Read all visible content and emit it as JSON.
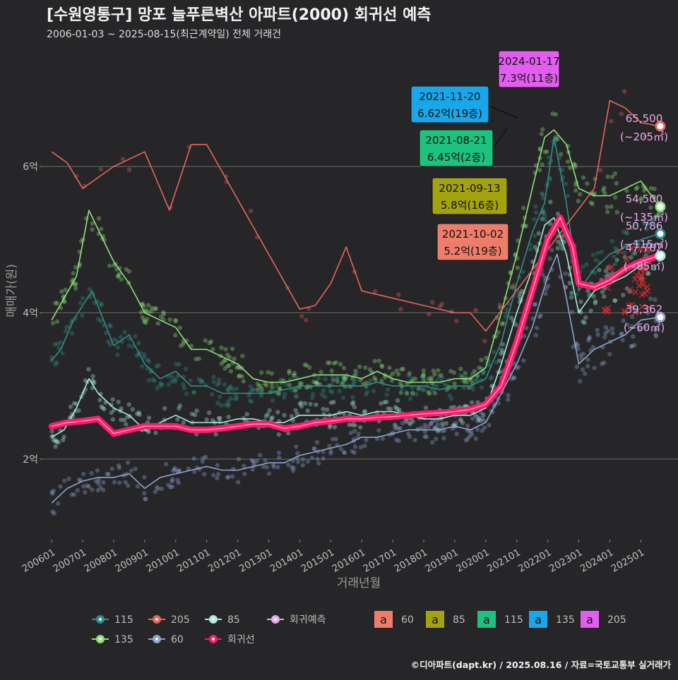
{
  "header": {
    "title": "[수원영통구] 망포 늘푸른벽산 아파트(2000) 회귀선 예측",
    "subtitle": "2006-01-03 ~ 2025-08-15(최근계약일) 전체 거래건"
  },
  "footer": {
    "credit": "©디아파트(dapt.kr) / 2025.08.16 / 자료=국토교통부 실거래가"
  },
  "chart_data": {
    "type": "scatter",
    "xlabel": "거래년월",
    "ylabel": "매매가(원)",
    "x_range": [
      "2006-01",
      "2025-08"
    ],
    "ylim": [
      0.9,
      7.6
    ],
    "y_ticks": [
      {
        "value": 2,
        "label": "2억"
      },
      {
        "value": 4,
        "label": "4억"
      },
      {
        "value": 6,
        "label": "6억"
      }
    ],
    "x_ticks": [
      "200601",
      "200701",
      "200801",
      "200901",
      "201001",
      "201101",
      "201201",
      "201301",
      "201401",
      "201501",
      "201601",
      "201701",
      "201801",
      "201901",
      "202001",
      "202101",
      "202201",
      "202301",
      "202401",
      "202501"
    ],
    "grid": true,
    "legend_position": "bottom",
    "colors": {
      "s60": "#8ea3cf",
      "s85": "#a8ecd8",
      "s115": "#2f8f86",
      "s135": "#8fe07a",
      "s205": "#e8645a",
      "regression": "#ff1a6a",
      "forecast": "#e6a9ec"
    },
    "series": [
      {
        "name": "60",
        "key": "s60",
        "points": [
          [
            2006.0,
            1.4
          ],
          [
            2006.5,
            1.6
          ],
          [
            2007.0,
            1.7
          ],
          [
            2007.5,
            1.75
          ],
          [
            2008.0,
            1.75
          ],
          [
            2008.5,
            1.8
          ],
          [
            2009.0,
            1.6
          ],
          [
            2009.5,
            1.75
          ],
          [
            2010.0,
            1.8
          ],
          [
            2010.5,
            1.85
          ],
          [
            2011.0,
            1.9
          ],
          [
            2011.5,
            1.85
          ],
          [
            2012.0,
            1.85
          ],
          [
            2012.5,
            1.9
          ],
          [
            2013.0,
            1.95
          ],
          [
            2013.5,
            1.95
          ],
          [
            2014.0,
            2.05
          ],
          [
            2014.5,
            2.1
          ],
          [
            2015.0,
            2.15
          ],
          [
            2015.5,
            2.2
          ],
          [
            2016.0,
            2.3
          ],
          [
            2016.5,
            2.3
          ],
          [
            2017.0,
            2.35
          ],
          [
            2017.5,
            2.4
          ],
          [
            2018.0,
            2.4
          ],
          [
            2018.5,
            2.4
          ],
          [
            2019.0,
            2.45
          ],
          [
            2019.5,
            2.4
          ],
          [
            2020.0,
            2.5
          ],
          [
            2020.5,
            2.9
          ],
          [
            2021.0,
            3.3
          ],
          [
            2021.5,
            3.8
          ],
          [
            2022.0,
            4.5
          ],
          [
            2022.3,
            4.8
          ],
          [
            2022.6,
            4.2
          ],
          [
            2023.0,
            3.3
          ],
          [
            2023.5,
            3.5
          ],
          [
            2024.0,
            3.6
          ],
          [
            2024.5,
            3.7
          ],
          [
            2025.0,
            3.9
          ],
          [
            2025.6,
            3.94
          ]
        ]
      },
      {
        "name": "85",
        "key": "s85",
        "points": [
          [
            2006.0,
            2.3
          ],
          [
            2006.4,
            2.4
          ],
          [
            2006.8,
            2.7
          ],
          [
            2007.2,
            3.1
          ],
          [
            2007.5,
            2.9
          ],
          [
            2008.0,
            2.7
          ],
          [
            2008.5,
            2.6
          ],
          [
            2009.0,
            2.4
          ],
          [
            2009.5,
            2.5
          ],
          [
            2010.0,
            2.6
          ],
          [
            2010.5,
            2.5
          ],
          [
            2011.0,
            2.5
          ],
          [
            2011.5,
            2.5
          ],
          [
            2012.0,
            2.55
          ],
          [
            2012.5,
            2.55
          ],
          [
            2013.0,
            2.5
          ],
          [
            2013.5,
            2.5
          ],
          [
            2014.0,
            2.6
          ],
          [
            2014.5,
            2.6
          ],
          [
            2015.0,
            2.6
          ],
          [
            2015.5,
            2.65
          ],
          [
            2016.0,
            2.6
          ],
          [
            2016.5,
            2.65
          ],
          [
            2017.0,
            2.65
          ],
          [
            2017.5,
            2.6
          ],
          [
            2018.0,
            2.55
          ],
          [
            2018.5,
            2.55
          ],
          [
            2019.0,
            2.6
          ],
          [
            2019.5,
            2.6
          ],
          [
            2020.0,
            2.7
          ],
          [
            2020.5,
            3.3
          ],
          [
            2021.0,
            4.0
          ],
          [
            2021.5,
            4.6
          ],
          [
            2021.9,
            5.2
          ],
          [
            2022.2,
            5.3
          ],
          [
            2022.6,
            4.8
          ],
          [
            2023.0,
            4.0
          ],
          [
            2023.5,
            4.3
          ],
          [
            2024.0,
            4.4
          ],
          [
            2024.5,
            4.5
          ],
          [
            2025.0,
            4.65
          ],
          [
            2025.6,
            4.78
          ]
        ]
      },
      {
        "name": "115",
        "key": "s115",
        "points": [
          [
            2006.0,
            3.35
          ],
          [
            2006.3,
            3.5
          ],
          [
            2006.7,
            3.9
          ],
          [
            2007.0,
            4.1
          ],
          [
            2007.3,
            4.3
          ],
          [
            2008.0,
            3.55
          ],
          [
            2008.5,
            3.7
          ],
          [
            2009.0,
            3.3
          ],
          [
            2009.5,
            3.1
          ],
          [
            2010.0,
            3.2
          ],
          [
            2010.5,
            3.0
          ],
          [
            2011.0,
            3.0
          ],
          [
            2011.5,
            2.9
          ],
          [
            2012.0,
            2.9
          ],
          [
            2012.5,
            2.9
          ],
          [
            2013.0,
            2.9
          ],
          [
            2013.5,
            2.95
          ],
          [
            2014.0,
            3.0
          ],
          [
            2014.5,
            3.0
          ],
          [
            2015.0,
            3.0
          ],
          [
            2015.5,
            3.0
          ],
          [
            2016.0,
            3.0
          ],
          [
            2016.5,
            3.05
          ],
          [
            2017.0,
            3.0
          ],
          [
            2017.5,
            3.0
          ],
          [
            2018.0,
            3.0
          ],
          [
            2018.5,
            2.95
          ],
          [
            2019.0,
            3.0
          ],
          [
            2019.5,
            3.0
          ],
          [
            2020.0,
            3.1
          ],
          [
            2020.5,
            3.6
          ],
          [
            2021.0,
            4.4
          ],
          [
            2021.5,
            5.1
          ],
          [
            2021.9,
            5.5
          ],
          [
            2022.2,
            6.4
          ],
          [
            2022.6,
            5.5
          ],
          [
            2023.0,
            4.3
          ],
          [
            2023.5,
            4.6
          ],
          [
            2024.0,
            4.8
          ],
          [
            2024.5,
            4.9
          ],
          [
            2025.0,
            5.0
          ],
          [
            2025.6,
            5.08
          ]
        ]
      },
      {
        "name": "135",
        "key": "s135",
        "points": [
          [
            2006.0,
            3.9
          ],
          [
            2006.4,
            4.2
          ],
          [
            2006.8,
            4.5
          ],
          [
            2007.2,
            5.4
          ],
          [
            2008.0,
            4.7
          ],
          [
            2008.5,
            4.4
          ],
          [
            2009.0,
            4.0
          ],
          [
            2009.5,
            3.9
          ],
          [
            2010.0,
            3.8
          ],
          [
            2010.5,
            3.5
          ],
          [
            2011.0,
            3.5
          ],
          [
            2011.5,
            3.4
          ],
          [
            2012.0,
            3.3
          ],
          [
            2012.5,
            3.1
          ],
          [
            2013.0,
            3.05
          ],
          [
            2013.5,
            3.05
          ],
          [
            2014.0,
            3.1
          ],
          [
            2014.5,
            3.15
          ],
          [
            2015.0,
            3.15
          ],
          [
            2015.5,
            3.15
          ],
          [
            2016.0,
            3.1
          ],
          [
            2016.5,
            3.2
          ],
          [
            2017.0,
            3.1
          ],
          [
            2017.5,
            3.05
          ],
          [
            2018.0,
            3.05
          ],
          [
            2018.5,
            3.05
          ],
          [
            2019.0,
            3.1
          ],
          [
            2019.5,
            3.1
          ],
          [
            2020.0,
            3.25
          ],
          [
            2020.5,
            4.0
          ],
          [
            2021.0,
            4.8
          ],
          [
            2021.5,
            5.7
          ],
          [
            2021.9,
            6.4
          ],
          [
            2022.2,
            6.5
          ],
          [
            2022.6,
            6.3
          ],
          [
            2023.0,
            5.7
          ],
          [
            2023.5,
            5.6
          ],
          [
            2024.0,
            5.6
          ],
          [
            2024.5,
            5.7
          ],
          [
            2025.0,
            5.8
          ],
          [
            2025.6,
            5.45
          ]
        ]
      },
      {
        "name": "205",
        "key": "s205",
        "points": [
          [
            2006.0,
            6.2
          ],
          [
            2006.5,
            6.05
          ],
          [
            2007.0,
            5.7
          ],
          [
            2008.0,
            6.0
          ],
          [
            2009.0,
            6.2
          ],
          [
            2009.8,
            5.4
          ],
          [
            2010.5,
            6.3
          ],
          [
            2011.0,
            6.3
          ],
          [
            2014.0,
            4.05
          ],
          [
            2014.5,
            4.1
          ],
          [
            2015.0,
            4.4
          ],
          [
            2015.5,
            4.9
          ],
          [
            2016.0,
            4.3
          ],
          [
            2017.0,
            4.2
          ],
          [
            2018.0,
            4.1
          ],
          [
            2019.0,
            4.0
          ],
          [
            2019.5,
            4.0
          ],
          [
            2020.0,
            3.75
          ],
          [
            2023.5,
            5.7
          ],
          [
            2024.0,
            6.9
          ],
          [
            2024.5,
            6.8
          ],
          [
            2025.0,
            6.6
          ],
          [
            2025.6,
            6.55
          ]
        ]
      },
      {
        "name": "회귀선",
        "key": "regression",
        "points": [
          [
            2006.0,
            2.45
          ],
          [
            2006.5,
            2.5
          ],
          [
            2007.0,
            2.52
          ],
          [
            2007.5,
            2.55
          ],
          [
            2008.0,
            2.35
          ],
          [
            2008.5,
            2.4
          ],
          [
            2009.0,
            2.45
          ],
          [
            2009.5,
            2.45
          ],
          [
            2010.0,
            2.45
          ],
          [
            2010.5,
            2.4
          ],
          [
            2011.0,
            2.4
          ],
          [
            2011.5,
            2.42
          ],
          [
            2012.0,
            2.45
          ],
          [
            2012.5,
            2.48
          ],
          [
            2013.0,
            2.48
          ],
          [
            2013.5,
            2.42
          ],
          [
            2014.0,
            2.45
          ],
          [
            2014.5,
            2.5
          ],
          [
            2015.0,
            2.52
          ],
          [
            2015.5,
            2.55
          ],
          [
            2016.0,
            2.55
          ],
          [
            2016.5,
            2.57
          ],
          [
            2017.0,
            2.58
          ],
          [
            2017.5,
            2.6
          ],
          [
            2018.0,
            2.62
          ],
          [
            2018.5,
            2.63
          ],
          [
            2019.0,
            2.65
          ],
          [
            2019.5,
            2.68
          ],
          [
            2020.0,
            2.75
          ],
          [
            2020.5,
            3.0
          ],
          [
            2021.0,
            3.6
          ],
          [
            2021.5,
            4.3
          ],
          [
            2022.0,
            5.0
          ],
          [
            2022.4,
            5.3
          ],
          [
            2022.8,
            4.9
          ],
          [
            2023.0,
            4.4
          ],
          [
            2023.5,
            4.35
          ],
          [
            2024.0,
            4.45
          ],
          [
            2024.5,
            4.6
          ],
          [
            2025.0,
            4.7
          ],
          [
            2025.6,
            4.78
          ]
        ]
      }
    ],
    "annotations": [
      {
        "date": "2024-01-17",
        "price": "7.3억(11층)",
        "area": "205",
        "color": "#e35ef0"
      },
      {
        "date": "2021-11-20",
        "price": "6.62억(19층)",
        "area": "135",
        "color": "#19a7ea"
      },
      {
        "date": "2021-08-21",
        "price": "6.45억(2층)",
        "area": "115",
        "color": "#1dc27e"
      },
      {
        "date": "2021-09-13",
        "price": "5.8억(16층)",
        "area": "85",
        "color": "#a3a20f"
      },
      {
        "date": "2021-10-02",
        "price": "5.2억(19층)",
        "area": "60",
        "color": "#ee7c6a"
      }
    ],
    "forecast_labels": [
      {
        "value": "65,500",
        "area": "(~205㎡)",
        "y": 6.55,
        "key": "s205"
      },
      {
        "value": "54,500",
        "area": "(~135㎡)",
        "y": 5.45,
        "key": "s135"
      },
      {
        "value": "50,786",
        "area": "(~115㎡)",
        "y": 5.08,
        "key": "s115"
      },
      {
        "value": "47,782",
        "area": "(~85㎡)",
        "y": 4.78,
        "key": "s85"
      },
      {
        "value": "39,362",
        "area": "(~60㎡)",
        "y": 3.94,
        "key": "s60"
      }
    ],
    "legend": {
      "lines": [
        {
          "label": "115",
          "key": "s115"
        },
        {
          "label": "205",
          "key": "s205"
        },
        {
          "label": "85",
          "key": "s85"
        },
        {
          "label": "회귀예측",
          "key": "forecast"
        },
        {
          "label": "135",
          "key": "s135"
        },
        {
          "label": "60",
          "key": "s60"
        },
        {
          "label": "회귀선",
          "key": "regression"
        }
      ],
      "boxes": [
        {
          "glyph": "a",
          "label": "60",
          "color": "#ee7c6a"
        },
        {
          "glyph": "a",
          "label": "85",
          "color": "#a3a20f"
        },
        {
          "glyph": "a",
          "label": "115",
          "color": "#1dc27e"
        },
        {
          "glyph": "a",
          "label": "135",
          "color": "#19a7ea"
        },
        {
          "glyph": "a",
          "label": "205",
          "color": "#e35ef0"
        }
      ]
    }
  }
}
